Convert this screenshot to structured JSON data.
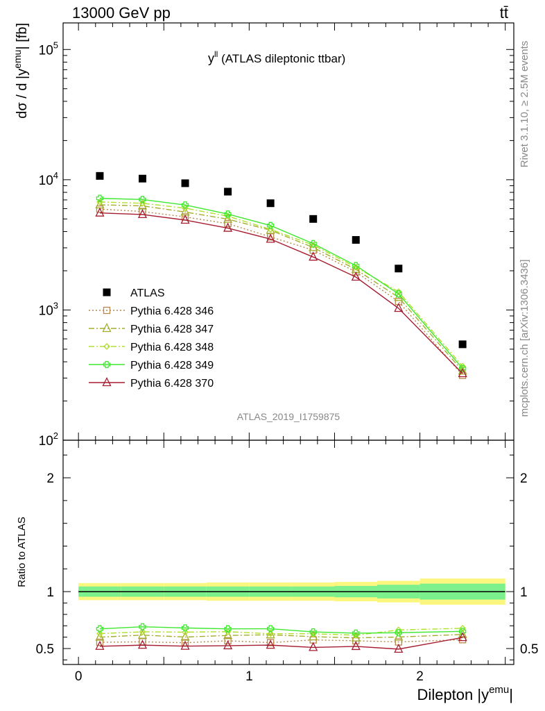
{
  "header": {
    "left": "13000 GeV pp",
    "right": "tt̄"
  },
  "side_text": {
    "rivet": "Rivet 3.1.10, ≥ 2.5M events",
    "mcplots": "mcplots.cern.ch [arXiv:1306.3436]"
  },
  "chart_data": [
    {
      "type": "scatter",
      "panel": "main",
      "title": "y",
      "title_superscript": "ll",
      "title_suffix": " (ATLAS dileptonic ttbar)",
      "watermark": "ATLAS_2019_I1759875",
      "ylabel": "dσ / d |y",
      "ylabel_superscript": "emu",
      "ylabel_suffix": "| [fb]",
      "y_scale": "log",
      "ylim": [
        100,
        160000
      ],
      "y_ticks": [
        {
          "value": 100,
          "base": "10",
          "exp": "2"
        },
        {
          "value": 1000,
          "base": "10",
          "exp": "3"
        },
        {
          "value": 10000,
          "base": "10",
          "exp": "4"
        },
        {
          "value": 100000,
          "base": "10",
          "exp": "5"
        }
      ],
      "xlim": [
        -0.09,
        2.55
      ],
      "x": [
        0.125,
        0.375,
        0.625,
        0.875,
        1.125,
        1.375,
        1.625,
        1.875,
        2.25
      ],
      "legend_position": "left",
      "series": [
        {
          "name": "ATLAS",
          "color": "#000000",
          "marker": "square-filled",
          "line": "none",
          "values": [
            10700,
            10200,
            9400,
            8100,
            6600,
            5000,
            3450,
            2080,
            545
          ]
        },
        {
          "name": "Pythia 6.428 346",
          "color": "#b8874a",
          "marker": "square-open",
          "line": "dotted",
          "values": [
            5950,
            5700,
            5180,
            4600,
            3640,
            2880,
            1960,
            1160,
            315
          ]
        },
        {
          "name": "Pythia 6.428 347",
          "color": "#a3ad2c",
          "marker": "triangle-open",
          "line": "dashdot",
          "values": [
            6420,
            6300,
            5650,
            4980,
            4100,
            3020,
            2050,
            1250,
            340
          ]
        },
        {
          "name": "Pythia 6.428 348",
          "color": "#b0e02a",
          "marker": "diamond-open",
          "line": "dashdot",
          "values": [
            6750,
            6600,
            6050,
            5250,
            4160,
            3150,
            2130,
            1380,
            370
          ]
        },
        {
          "name": "Pythia 6.428 349",
          "color": "#3ee82e",
          "marker": "cross-open",
          "line": "solid",
          "values": [
            7200,
            7050,
            6400,
            5450,
            4450,
            3230,
            2190,
            1330,
            355
          ]
        },
        {
          "name": "Pythia 6.428 370",
          "color": "#a51c30",
          "marker": "triangle-open",
          "line": "solid",
          "values": [
            5560,
            5410,
            4900,
            4250,
            3500,
            2550,
            1790,
            1030,
            325
          ]
        }
      ]
    },
    {
      "type": "line",
      "panel": "ratio",
      "ylabel": "Ratio to ATLAS",
      "xlabel": "Dilepton |y",
      "xlabel_superscript": "emu",
      "xlabel_suffix": "|",
      "ylim": [
        0.36,
        2.33
      ],
      "xlim": [
        -0.09,
        2.55
      ],
      "y_ticks": [
        0.5,
        1,
        2
      ],
      "x_ticks": [
        0,
        1,
        2
      ],
      "x": [
        0.125,
        0.375,
        0.625,
        0.875,
        1.125,
        1.375,
        1.625,
        1.875,
        2.25
      ],
      "bin_edges": [
        0,
        0.25,
        0.5,
        0.75,
        1.0,
        1.25,
        1.5,
        1.75,
        2.0,
        2.5
      ],
      "reference_band": {
        "inner_halfwidth": [
          0.045,
          0.045,
          0.045,
          0.045,
          0.045,
          0.045,
          0.05,
          0.06,
          0.07
        ],
        "outer_halfwidth": [
          0.075,
          0.075,
          0.075,
          0.08,
          0.08,
          0.08,
          0.085,
          0.095,
          0.115
        ],
        "inner_color": "#7cf08c",
        "outer_color": "#fbf77e"
      },
      "series": [
        {
          "name": "Pythia 6.428 346",
          "color": "#b8874a",
          "marker": "square-open",
          "line": "dotted",
          "values": [
            0.555,
            0.559,
            0.551,
            0.568,
            0.552,
            0.576,
            0.568,
            0.558,
            0.578
          ]
        },
        {
          "name": "Pythia 6.428 347",
          "color": "#a3ad2c",
          "marker": "triangle-open",
          "line": "dashdot",
          "values": [
            0.6,
            0.618,
            0.601,
            0.615,
            0.621,
            0.604,
            0.594,
            0.601,
            0.624
          ]
        },
        {
          "name": "Pythia 6.428 348",
          "color": "#b0e02a",
          "marker": "diamond-open",
          "line": "dashdot",
          "values": [
            0.631,
            0.647,
            0.644,
            0.648,
            0.63,
            0.63,
            0.617,
            0.663,
            0.678
          ]
        },
        {
          "name": "Pythia 6.428 349",
          "color": "#3ee82e",
          "marker": "cross-open",
          "line": "solid",
          "values": [
            0.673,
            0.691,
            0.681,
            0.673,
            0.674,
            0.646,
            0.635,
            0.639,
            0.651
          ]
        },
        {
          "name": "Pythia 6.428 370",
          "color": "#a51c30",
          "marker": "triangle-open",
          "line": "solid",
          "values": [
            0.52,
            0.53,
            0.521,
            0.525,
            0.53,
            0.51,
            0.519,
            0.495,
            0.597
          ]
        }
      ]
    }
  ]
}
